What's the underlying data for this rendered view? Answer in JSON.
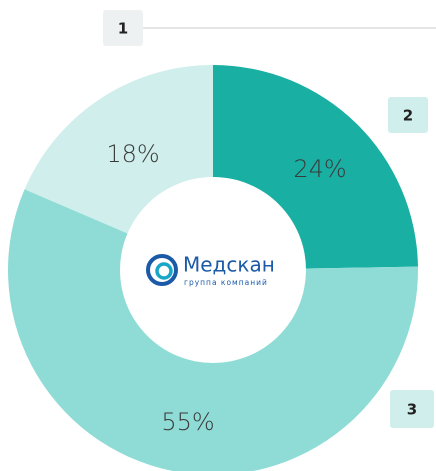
{
  "chart_data": {
    "type": "pie",
    "donut": true,
    "values": [
      24,
      55,
      18
    ],
    "value_labels": [
      "24%",
      "55%",
      "18%"
    ],
    "colors": [
      "#1aafa3",
      "#8fdcd6",
      "#cfeeec"
    ],
    "markers": [
      "2",
      "3",
      "1"
    ],
    "logo": {
      "name": "Медскан",
      "tagline": "группа компаний"
    }
  }
}
